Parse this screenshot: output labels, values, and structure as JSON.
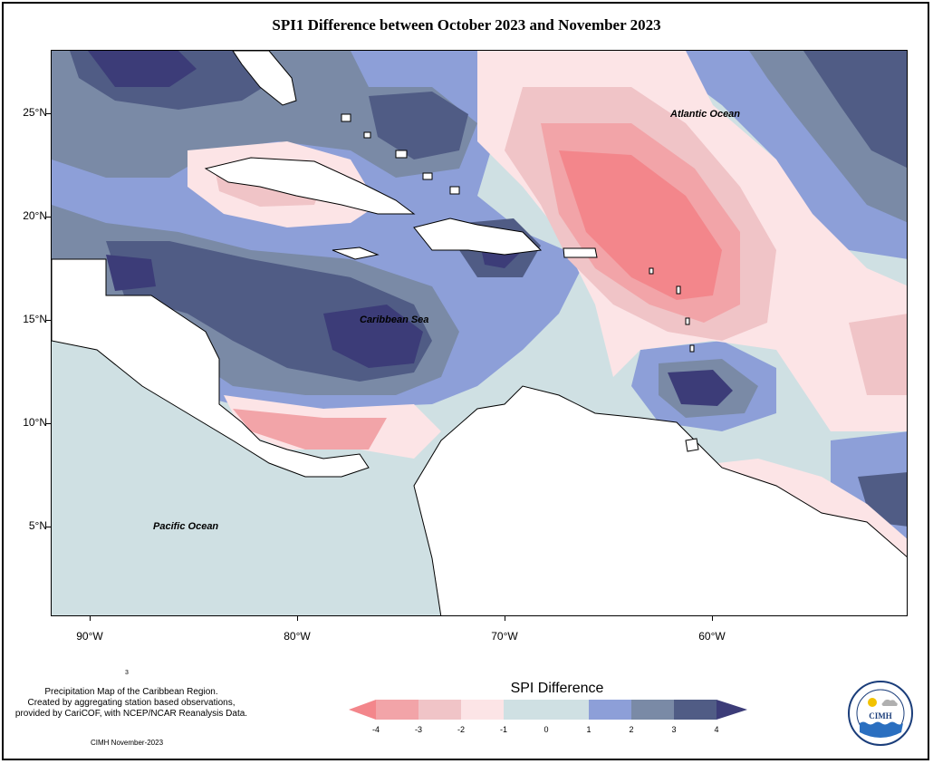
{
  "title": "SPI1 Difference between October 2023 and November 2023",
  "map_labels": {
    "atlantic": "Atlantic Ocean",
    "caribbean": "Caribbean Sea",
    "pacific": "Pacific Ocean"
  },
  "lat_ticks": [
    "25°N",
    "20°N",
    "15°N",
    "10°N",
    "5°N"
  ],
  "lon_ticks": [
    "90°W",
    "80°W",
    "70°W",
    "60°W"
  ],
  "notes": {
    "small_mark": "3",
    "line1": "Precipitation Map of the Caribbean Region.",
    "line2": "Created by aggregating station based observations,",
    "line3": "provided by CariCOF, with NCEP/NCAR Reanalysis Data.",
    "credit": "CIMH November-2023"
  },
  "legend": {
    "title": "SPI Difference",
    "labels": [
      "-4",
      "-3",
      "-2",
      "-1",
      "0",
      "1",
      "2",
      "3",
      "4"
    ],
    "colors": [
      "#f3868b",
      "#f2a4a8",
      "#f0c4c7",
      "#fce4e6",
      "#cfe0e3",
      "#8d9fd8",
      "#7a8aa6",
      "#505c85",
      "#3c3c78"
    ]
  },
  "logo": {
    "name": "CIMH",
    "ring_text": "Caribbean Institute for Meteorology and Hydrology"
  }
}
